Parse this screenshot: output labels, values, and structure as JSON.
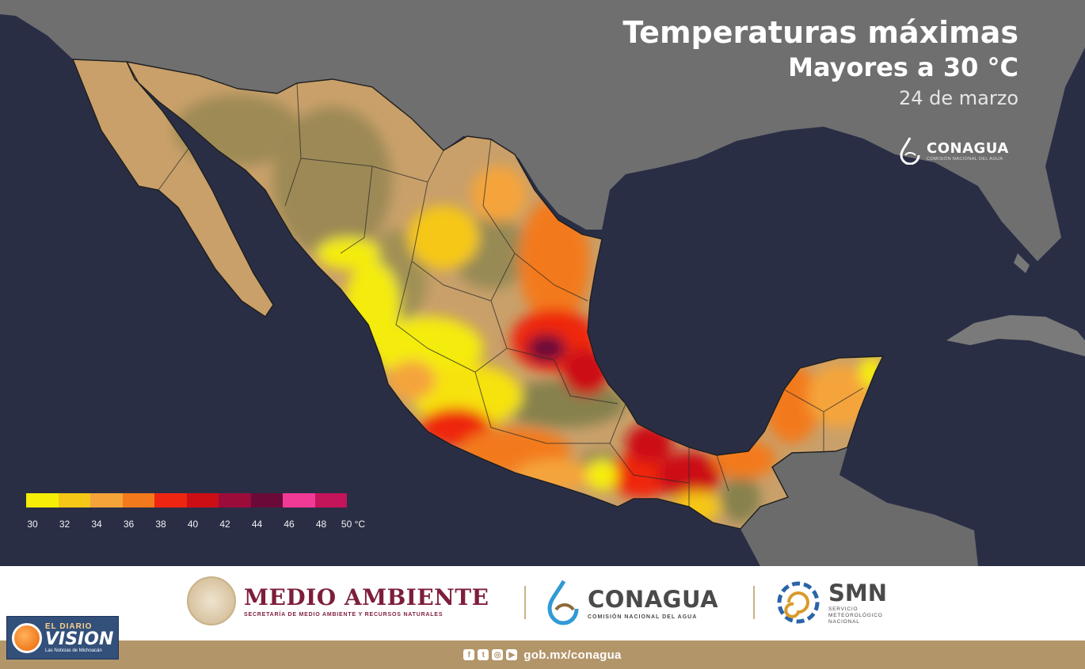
{
  "title": {
    "line1": "Temperaturas máximas",
    "line2": "Mayores a 30 °C",
    "date": "24 de marzo"
  },
  "corner_logo": {
    "name": "CONAGUA",
    "sub": "COMISIÓN NACIONAL DEL AGUA",
    "icon": "water-drop-icon"
  },
  "legend": {
    "colors": [
      "#f6ee07",
      "#f6c716",
      "#f5a43a",
      "#f37a1c",
      "#ee2511",
      "#cc0f15",
      "#9b0c3b",
      "#6b0a38",
      "#f13a96",
      "#c4145a"
    ],
    "ticks": [
      "30",
      "32",
      "34",
      "36",
      "38",
      "40",
      "42",
      "44",
      "46",
      "48",
      "50 °C"
    ]
  },
  "map": {
    "ocean_color": "#2a2e45",
    "land_gray": "#6e6e6e",
    "country_base": "#c9a06a",
    "highland": "#8c8455"
  },
  "footer": {
    "medio_ambiente": {
      "name": "MEDIO AMBIENTE",
      "sub": "SECRETARÍA DE MEDIO AMBIENTE Y RECURSOS NATURALES",
      "icon": "national-seal-icon"
    },
    "conagua": {
      "name": "CONAGUA",
      "sub": "COMISIÓN NACIONAL DEL AGUA",
      "icon": "water-drop-icon"
    },
    "smn": {
      "name": "SMN",
      "sub": [
        "SERVICIO",
        "METEOROLÓGICO",
        "NACIONAL"
      ],
      "icon": "spiral-icon"
    },
    "url": "gob.mx/conagua",
    "social": [
      {
        "icon": "facebook-icon",
        "glyph": "f"
      },
      {
        "icon": "twitter-icon",
        "glyph": "t"
      },
      {
        "icon": "instagram-icon",
        "glyph": "◎"
      },
      {
        "icon": "youtube-icon",
        "glyph": "▶"
      }
    ]
  },
  "watermark": {
    "line1": "EL DIARIO",
    "line2": "VISION",
    "line3": "Las Noticias de Michoacán"
  }
}
